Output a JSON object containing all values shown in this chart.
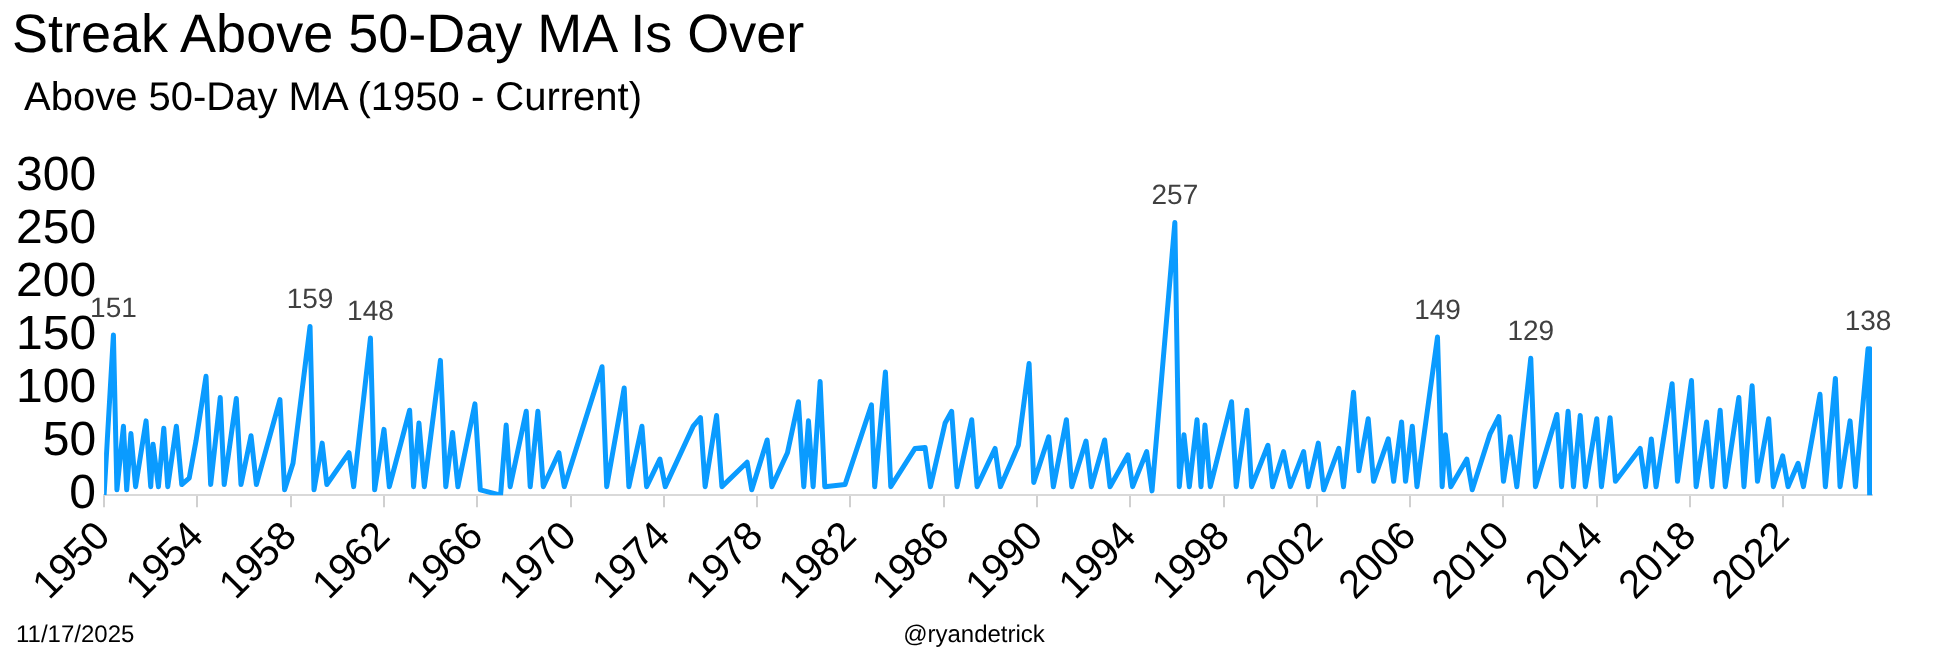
{
  "chart_data": {
    "type": "line",
    "title": "Streak Above 50-Day MA Is Over",
    "subtitle": "Above 50-Day MA (1950 - Current)",
    "x": [
      1950.0,
      1950.4,
      1950.55,
      1950.83,
      1950.97,
      1951.15,
      1951.35,
      1951.8,
      1952.0,
      1952.1,
      1952.33,
      1952.56,
      1952.73,
      1953.1,
      1953.33,
      1953.65,
      1953.94,
      1954.37,
      1954.57,
      1954.98,
      1955.15,
      1955.67,
      1955.87,
      1956.3,
      1956.53,
      1957.54,
      1957.74,
      1958.1,
      1958.83,
      1959.0,
      1959.35,
      1959.55,
      1960.5,
      1960.7,
      1961.42,
      1961.6,
      1962.0,
      1962.23,
      1963.1,
      1963.27,
      1963.5,
      1963.73,
      1964.42,
      1964.65,
      1964.94,
      1965.17,
      1965.9,
      1966.13,
      1967.0,
      1967.24,
      1967.41,
      1968.1,
      1968.27,
      1968.6,
      1968.83,
      1969.5,
      1969.73,
      1971.35,
      1971.55,
      1972.3,
      1972.5,
      1973.06,
      1973.26,
      1973.83,
      1974.06,
      1975.26,
      1975.57,
      1975.77,
      1976.26,
      1976.49,
      1977.57,
      1977.77,
      1978.43,
      1978.63,
      1979.3,
      1979.77,
      1980.0,
      1980.2,
      1980.4,
      1980.7,
      1980.9,
      1981.77,
      1982.9,
      1983.04,
      1983.5,
      1983.73,
      1984.77,
      1985.2,
      1985.43,
      1986.06,
      1986.34,
      1986.57,
      1987.2,
      1987.43,
      1988.2,
      1988.43,
      1989.2,
      1989.66,
      1989.86,
      1990.5,
      1990.7,
      1991.26,
      1991.49,
      1992.1,
      1992.33,
      1992.9,
      1993.13,
      1993.9,
      1994.1,
      1994.7,
      1994.93,
      1995.91,
      1996.1,
      1996.3,
      1996.53,
      1996.86,
      1997.03,
      1997.2,
      1997.43,
      1998.34,
      1998.54,
      1999.0,
      1999.2,
      1999.9,
      2000.1,
      2000.57,
      2000.86,
      2001.43,
      2001.63,
      2002.06,
      2002.29,
      2002.94,
      2003.14,
      2003.57,
      2003.8,
      2004.2,
      2004.43,
      2005.06,
      2005.29,
      2005.63,
      2005.8,
      2006.09,
      2006.29,
      2007.17,
      2007.37,
      2007.51,
      2007.74,
      2008.43,
      2008.66,
      2009.43,
      2009.8,
      2010.0,
      2010.29,
      2010.57,
      2011.17,
      2011.37,
      2012.29,
      2012.49,
      2012.77,
      2013.0,
      2013.29,
      2013.51,
      2014.0,
      2014.2,
      2014.57,
      2014.8,
      2015.86,
      2016.09,
      2016.34,
      2016.54,
      2017.23,
      2017.46,
      2018.06,
      2018.26,
      2018.71,
      2018.94,
      2019.29,
      2019.51,
      2020.09,
      2020.31,
      2020.66,
      2020.89,
      2021.37,
      2021.57,
      2021.97,
      2022.2,
      2022.63,
      2022.86,
      2023.57,
      2023.8,
      2024.23,
      2024.43,
      2024.86,
      2025.09,
      2025.63,
      2025.7
    ],
    "values": [
      0,
      151,
      5,
      65,
      5,
      58,
      8,
      70,
      8,
      48,
      8,
      63,
      8,
      65,
      10,
      16,
      51,
      112,
      10,
      92,
      10,
      91,
      10,
      56,
      10,
      90,
      5,
      30,
      159,
      5,
      49,
      10,
      40,
      8,
      148,
      5,
      62,
      8,
      80,
      8,
      68,
      8,
      127,
      8,
      59,
      8,
      86,
      5,
      0,
      66,
      8,
      79,
      8,
      79,
      8,
      40,
      8,
      121,
      8,
      101,
      8,
      65,
      8,
      34,
      8,
      65,
      73,
      8,
      75,
      8,
      31,
      5,
      52,
      8,
      40,
      88,
      8,
      70,
      8,
      107,
      8,
      10,
      85,
      8,
      116,
      8,
      44,
      45,
      8,
      68,
      79,
      8,
      71,
      8,
      44,
      8,
      47,
      124,
      12,
      55,
      8,
      71,
      8,
      51,
      8,
      52,
      8,
      38,
      8,
      41,
      4,
      257,
      8,
      57,
      8,
      71,
      8,
      66,
      8,
      88,
      8,
      80,
      8,
      47,
      8,
      41,
      8,
      41,
      8,
      49,
      5,
      44,
      8,
      97,
      23,
      72,
      13,
      53,
      13,
      69,
      13,
      65,
      8,
      149,
      8,
      57,
      8,
      34,
      5,
      58,
      74,
      13,
      55,
      8,
      129,
      8,
      76,
      8,
      79,
      8,
      75,
      8,
      72,
      8,
      73,
      13,
      44,
      8,
      53,
      8,
      105,
      13,
      108,
      8,
      69,
      8,
      80,
      8,
      92,
      8,
      103,
      13,
      72,
      8,
      37,
      8,
      30,
      8,
      95,
      8,
      110,
      8,
      70,
      8,
      138,
      0
    ],
    "color": "#0a9bff",
    "line_style": "solid",
    "marker": "none",
    "xlim": [
      1950,
      2025.8
    ],
    "xticks": [
      1950,
      1954,
      1958,
      1962,
      1966,
      1970,
      1974,
      1978,
      1982,
      1986,
      1990,
      1994,
      1998,
      2002,
      2006,
      2010,
      2014,
      2018,
      2022
    ],
    "ylim": [
      0,
      300
    ],
    "yticks": [
      0,
      50,
      100,
      150,
      200,
      250,
      300
    ],
    "grid": false,
    "legend": false,
    "annotations": [
      {
        "text": "151",
        "x": 1950.4,
        "y": 151
      },
      {
        "text": "159",
        "x": 1958.83,
        "y": 159
      },
      {
        "text": "148",
        "x": 1961.42,
        "y": 148
      },
      {
        "text": "257",
        "x": 1995.91,
        "y": 257
      },
      {
        "text": "149",
        "x": 2007.17,
        "y": 149
      },
      {
        "text": "129",
        "x": 2011.17,
        "y": 129
      },
      {
        "text": "138",
        "x": 2025.63,
        "y": 138
      },
      "11/17/2025",
      "@ryandetrick"
    ]
  }
}
